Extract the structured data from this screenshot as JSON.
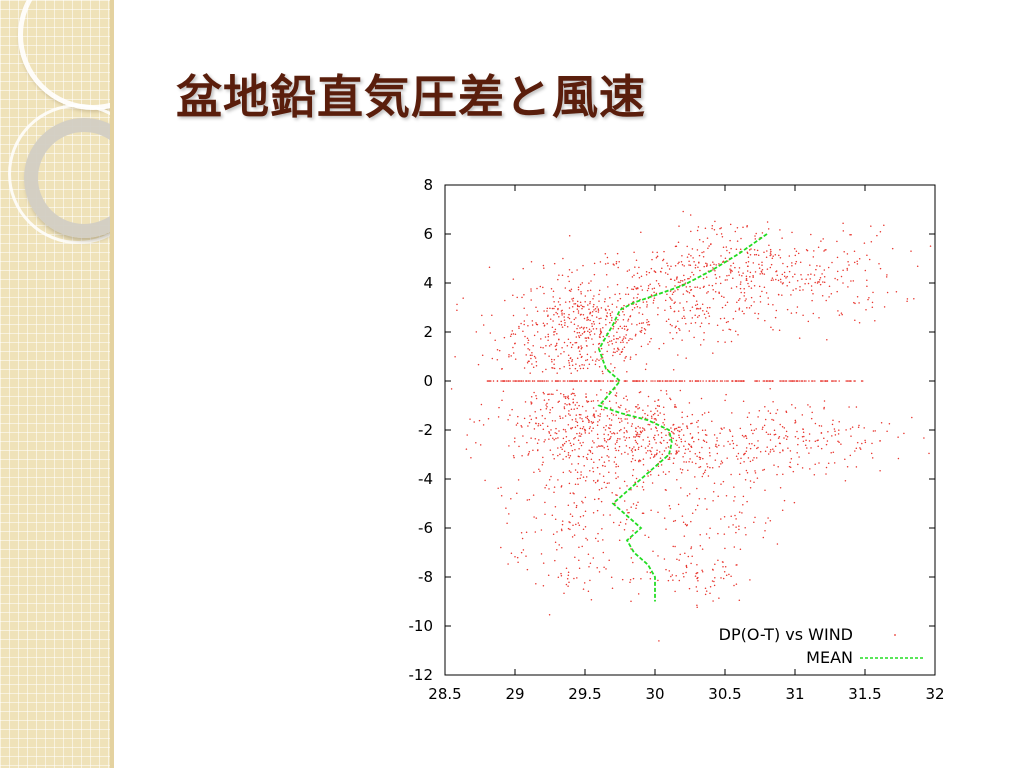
{
  "slide": {
    "title": "盆地鉛直気圧差と風速"
  },
  "colors": {
    "title": "#5a1e0c",
    "scatter": "#e8352e",
    "mean": "#22dd22",
    "axis": "#000000",
    "deco_bg": "#efe2b9"
  },
  "icons": {
    "decoration": "rings-ornament-icon"
  },
  "chart_data": {
    "type": "scatter",
    "title": "",
    "xlabel": "",
    "ylabel": "",
    "xlim": [
      28.5,
      32
    ],
    "ylim": [
      -12,
      8
    ],
    "xticks": [
      "28.5",
      "29",
      "29.5",
      "30",
      "30.5",
      "31",
      "31.5",
      "32"
    ],
    "yticks": [
      "8",
      "6",
      "4",
      "2",
      "0",
      "-2",
      "-4",
      "-6",
      "-8",
      "-10",
      "-12"
    ],
    "grid": false,
    "legend_position": "bottom-right",
    "legend": [
      {
        "label": "DP(O-T) vs WIND",
        "style": "dots",
        "color": "#e8352e"
      },
      {
        "label": "MEAN",
        "style": "dashed-line",
        "color": "#22dd22"
      }
    ],
    "series": [
      {
        "name": "MEAN",
        "type": "line",
        "style": "dashed",
        "points": [
          [
            30.8,
            6.0
          ],
          [
            30.6,
            5.2
          ],
          [
            30.4,
            4.5
          ],
          [
            30.2,
            3.9
          ],
          [
            30.0,
            3.5
          ],
          [
            29.85,
            3.2
          ],
          [
            29.75,
            2.9
          ],
          [
            29.7,
            2.3
          ],
          [
            29.65,
            1.8
          ],
          [
            29.6,
            1.3
          ],
          [
            29.65,
            0.5
          ],
          [
            29.75,
            0.0
          ],
          [
            29.65,
            -0.7
          ],
          [
            29.6,
            -1.0
          ],
          [
            29.75,
            -1.3
          ],
          [
            29.95,
            -1.6
          ],
          [
            30.1,
            -2.0
          ],
          [
            30.12,
            -2.5
          ],
          [
            30.1,
            -3.0
          ],
          [
            30.0,
            -3.5
          ],
          [
            29.9,
            -4.0
          ],
          [
            29.8,
            -4.5
          ],
          [
            29.7,
            -5.0
          ],
          [
            29.8,
            -5.5
          ],
          [
            29.9,
            -6.0
          ],
          [
            29.8,
            -6.5
          ],
          [
            29.85,
            -7.0
          ],
          [
            29.95,
            -7.5
          ],
          [
            30.0,
            -8.0
          ],
          [
            30.0,
            -9.0
          ]
        ]
      },
      {
        "name": "DP(O-T) vs WIND",
        "type": "scatter",
        "clusters": [
          {
            "cx": 29.5,
            "cy": 2.0,
            "sx": 0.25,
            "sy": 1.2,
            "n": 420
          },
          {
            "cx": 30.2,
            "cy": 3.6,
            "sx": 0.35,
            "sy": 1.1,
            "n": 340
          },
          {
            "cx": 31.05,
            "cy": 4.3,
            "sx": 0.35,
            "sy": 1.0,
            "n": 220
          },
          {
            "cx": 30.6,
            "cy": 4.9,
            "sx": 0.25,
            "sy": 0.9,
            "n": 100
          },
          {
            "cx": 29.2,
            "cy": 1.5,
            "sx": 0.35,
            "sy": 1.4,
            "n": 120
          },
          {
            "cx": 29.45,
            "cy": -1.6,
            "sx": 0.3,
            "sy": 1.0,
            "n": 320
          },
          {
            "cx": 30.0,
            "cy": -2.4,
            "sx": 0.25,
            "sy": 0.8,
            "n": 300
          },
          {
            "cx": 31.0,
            "cy": -2.3,
            "sx": 0.35,
            "sy": 0.8,
            "n": 220
          },
          {
            "cx": 29.4,
            "cy": -4.5,
            "sx": 0.25,
            "sy": 1.4,
            "n": 160
          },
          {
            "cx": 30.4,
            "cy": -4.5,
            "sx": 0.3,
            "sy": 1.3,
            "n": 110
          },
          {
            "cx": 29.35,
            "cy": -7.3,
            "sx": 0.2,
            "sy": 1.0,
            "n": 60
          },
          {
            "cx": 30.35,
            "cy": -7.8,
            "sx": 0.15,
            "sy": 0.7,
            "n": 70
          },
          {
            "cx": 30.0,
            "cy": -6.0,
            "sx": 0.3,
            "sy": 1.5,
            "n": 60
          }
        ],
        "zero_line": {
          "y": 0,
          "x_range": [
            28.8,
            31.5
          ],
          "n": 260
        }
      }
    ]
  }
}
